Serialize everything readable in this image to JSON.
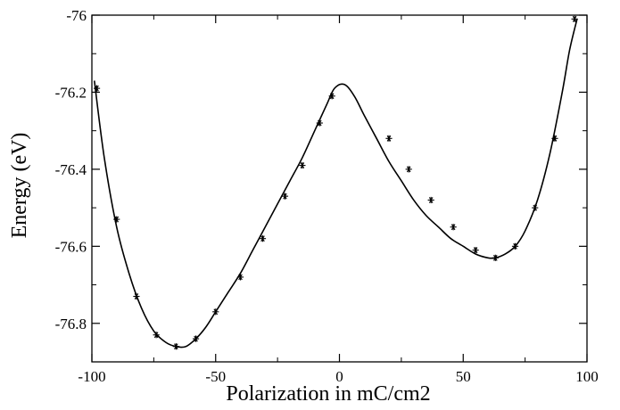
{
  "chart_data": {
    "type": "scatter",
    "title": "",
    "xlabel": "Polarization in mC/cm2",
    "ylabel": "Energy (eV)",
    "xlim": [
      -100,
      100
    ],
    "ylim": [
      -76.9,
      -76.0
    ],
    "x_ticks": [
      -100,
      -50,
      0,
      50,
      100
    ],
    "x_tick_labels": [
      "-100",
      "-50",
      "0",
      "50",
      "100"
    ],
    "y_ticks": [
      -76.8,
      -76.6,
      -76.4,
      -76.2,
      -76.0
    ],
    "y_tick_labels": [
      "-76.8",
      "-76.6",
      "-76.4",
      "-76.2",
      "-76"
    ],
    "grid": false,
    "legend": "none",
    "series": [
      {
        "marker": "asterisk",
        "x": [
          -98,
          -90,
          -82,
          -74,
          -66,
          -58,
          -50,
          -40,
          -31,
          -22,
          -15,
          -8,
          -3,
          20,
          28,
          37,
          46,
          55,
          63,
          71,
          79,
          87,
          95
        ],
        "y": [
          -76.19,
          -76.53,
          -76.73,
          -76.83,
          -76.86,
          -76.84,
          -76.77,
          -76.68,
          -76.58,
          -76.47,
          -76.39,
          -76.28,
          -76.21,
          -76.32,
          -76.4,
          -76.48,
          -76.55,
          -76.61,
          -76.63,
          -76.6,
          -76.5,
          -76.32,
          -76.01
        ]
      },
      {
        "type": "line",
        "smooth": true,
        "x": [
          -99,
          -95,
          -90,
          -85,
          -80,
          -75,
          -70,
          -66,
          -62,
          -58,
          -54,
          -50,
          -45,
          -40,
          -35,
          -30,
          -25,
          -20,
          -15,
          -10,
          -5,
          -2,
          2,
          6,
          10,
          15,
          20,
          25,
          30,
          35,
          40,
          45,
          50,
          55,
          60,
          63,
          67,
          71,
          75,
          80,
          85,
          90,
          93,
          96
        ],
        "y": [
          -76.17,
          -76.37,
          -76.55,
          -76.67,
          -76.76,
          -76.82,
          -76.85,
          -76.86,
          -76.86,
          -76.84,
          -76.81,
          -76.77,
          -76.72,
          -76.67,
          -76.61,
          -76.55,
          -76.49,
          -76.43,
          -76.37,
          -76.3,
          -76.23,
          -76.19,
          -76.18,
          -76.21,
          -76.26,
          -76.32,
          -76.38,
          -76.43,
          -76.48,
          -76.52,
          -76.55,
          -76.58,
          -76.6,
          -76.62,
          -76.63,
          -76.63,
          -76.62,
          -76.6,
          -76.56,
          -76.48,
          -76.36,
          -76.2,
          -76.09,
          -76.01
        ]
      }
    ]
  }
}
